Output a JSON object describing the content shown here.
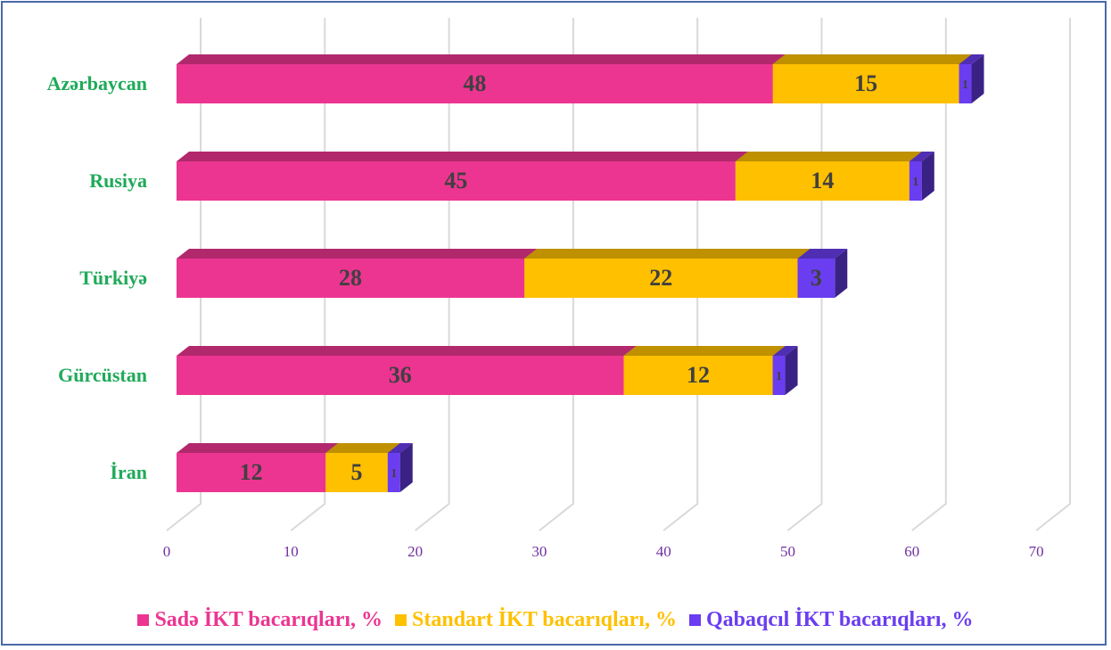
{
  "chart_data": {
    "type": "bar3d_stacked_horizontal",
    "categories": [
      "Azərbaycan",
      "Rusiya",
      "Türkiyə",
      "Gürcüstan",
      "İran"
    ],
    "series": [
      {
        "name": "Sadə İKT bacarıqları, %",
        "color": "#ec3591",
        "values": [
          48,
          45,
          28,
          36,
          12
        ]
      },
      {
        "name": "Standart İKT bacarıqları, %",
        "color": "#ffc000",
        "values": [
          15,
          14,
          22,
          12,
          5
        ]
      },
      {
        "name": "Qabaqcıl İKT bacarıqları, %",
        "color": "#6a3df0",
        "values": [
          1,
          1,
          3,
          1,
          1
        ]
      }
    ],
    "xlim": [
      0,
      70
    ],
    "xticks": [
      0,
      10,
      20,
      30,
      40,
      50,
      60,
      70
    ],
    "grid": true,
    "legend": "bottom"
  }
}
